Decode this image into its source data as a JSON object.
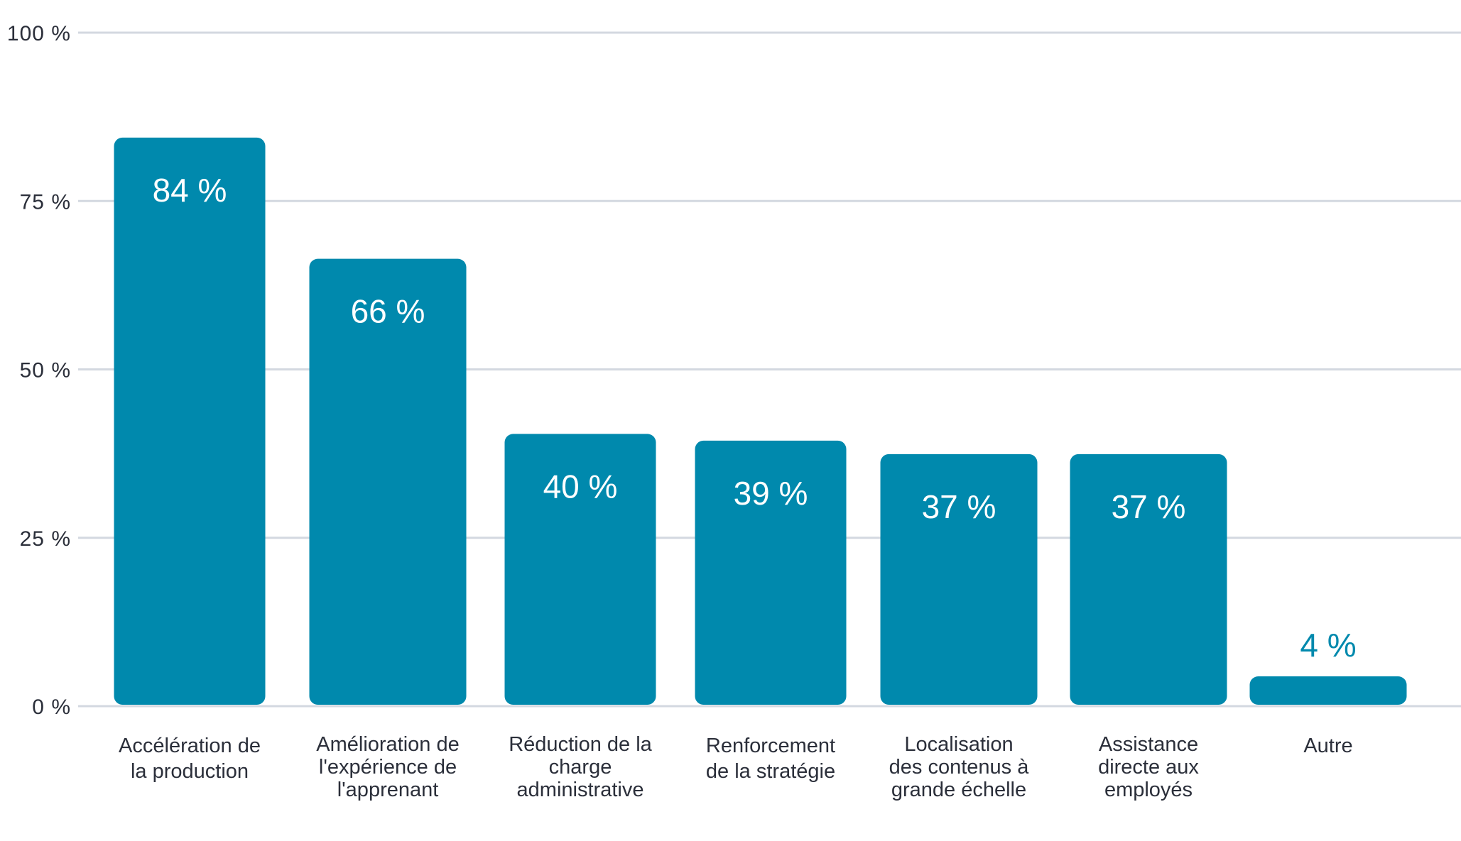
{
  "chart_data": {
    "type": "bar",
    "title": "",
    "xlabel": "",
    "ylabel": "",
    "ylim": [
      0,
      100
    ],
    "yticks": [
      {
        "value": 0,
        "label": "0 %"
      },
      {
        "value": 25,
        "label": "25 %"
      },
      {
        "value": 50,
        "label": "50 %"
      },
      {
        "value": 75,
        "label": "75 %"
      },
      {
        "value": 100,
        "label": "100 %"
      }
    ],
    "grid": true,
    "bar_color": "#0089ad",
    "label_inside_color": "#ffffff",
    "label_outside_color": "#0089ad",
    "gridline_color": "#d3d8e0",
    "categories": [
      [
        "Accélération de",
        "la production"
      ],
      [
        "Amélioration de",
        "l'expérience de",
        "l'apprenant"
      ],
      [
        "Réduction de la",
        "charge",
        "administrative"
      ],
      [
        "Renforcement",
        "de la stratégie"
      ],
      [
        "Localisation",
        "des contenus à",
        "grande échelle"
      ],
      [
        "Assistance",
        "directe aux",
        "employés"
      ],
      [
        "Autre"
      ]
    ],
    "values": [
      84,
      66,
      40,
      39,
      37,
      37,
      4
    ],
    "data_labels": [
      "84 %",
      "66 %",
      "40 %",
      "39 %",
      "37 %",
      "37 %",
      "4 %"
    ]
  }
}
